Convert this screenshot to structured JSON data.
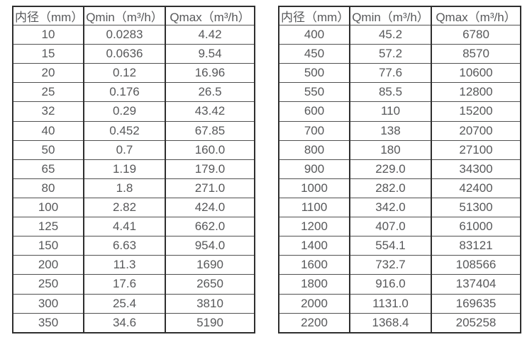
{
  "tables": [
    {
      "name": "small-diameter-flow-table",
      "headers": [
        "内径（mm）",
        "Qmin（m³/h）",
        "Qmax（m³/h）"
      ],
      "rows": [
        [
          "10",
          "0.0283",
          "4.42"
        ],
        [
          "15",
          "0.0636",
          "9.54"
        ],
        [
          "20",
          "0.12",
          "16.96"
        ],
        [
          "25",
          "0.176",
          "26.5"
        ],
        [
          "32",
          "0.29",
          "43.42"
        ],
        [
          "40",
          "0.452",
          "67.85"
        ],
        [
          "50",
          "0.7",
          "160.0"
        ],
        [
          "65",
          "1.19",
          "179.0"
        ],
        [
          "80",
          "1.8",
          "271.0"
        ],
        [
          "100",
          "2.82",
          "424.0"
        ],
        [
          "125",
          "4.41",
          "662.0"
        ],
        [
          "150",
          "6.63",
          "954.0"
        ],
        [
          "200",
          "11.3",
          "1690"
        ],
        [
          "250",
          "17.6",
          "2650"
        ],
        [
          "300",
          "25.4",
          "3810"
        ],
        [
          "350",
          "34.6",
          "5190"
        ]
      ]
    },
    {
      "name": "large-diameter-flow-table",
      "headers": [
        "内径（mm）",
        "Qmin（m³/h）",
        "Qmax（m³/h）"
      ],
      "rows": [
        [
          "400",
          "45.2",
          "6780"
        ],
        [
          "450",
          "57.2",
          "8570"
        ],
        [
          "500",
          "77.6",
          "10600"
        ],
        [
          "550",
          "85.5",
          "12800"
        ],
        [
          "600",
          "110",
          "15200"
        ],
        [
          "700",
          "138",
          "20700"
        ],
        [
          "800",
          "180",
          "27100"
        ],
        [
          "900",
          "229.0",
          "34300"
        ],
        [
          "1000",
          "282.0",
          "42400"
        ],
        [
          "1100",
          "342.0",
          "51300"
        ],
        [
          "1200",
          "407.0",
          "61000"
        ],
        [
          "1400",
          "554.1",
          "83121"
        ],
        [
          "1600",
          "732.7",
          "108566"
        ],
        [
          "1800",
          "916.0",
          "137404"
        ],
        [
          "2000",
          "1131.0",
          "169635"
        ],
        [
          "2200",
          "1368.4",
          "205258"
        ]
      ]
    }
  ],
  "colors": {
    "text": "#57585a",
    "outer_border": "#2e2e2e",
    "row_border": "#505050",
    "background": "#ffffff"
  }
}
